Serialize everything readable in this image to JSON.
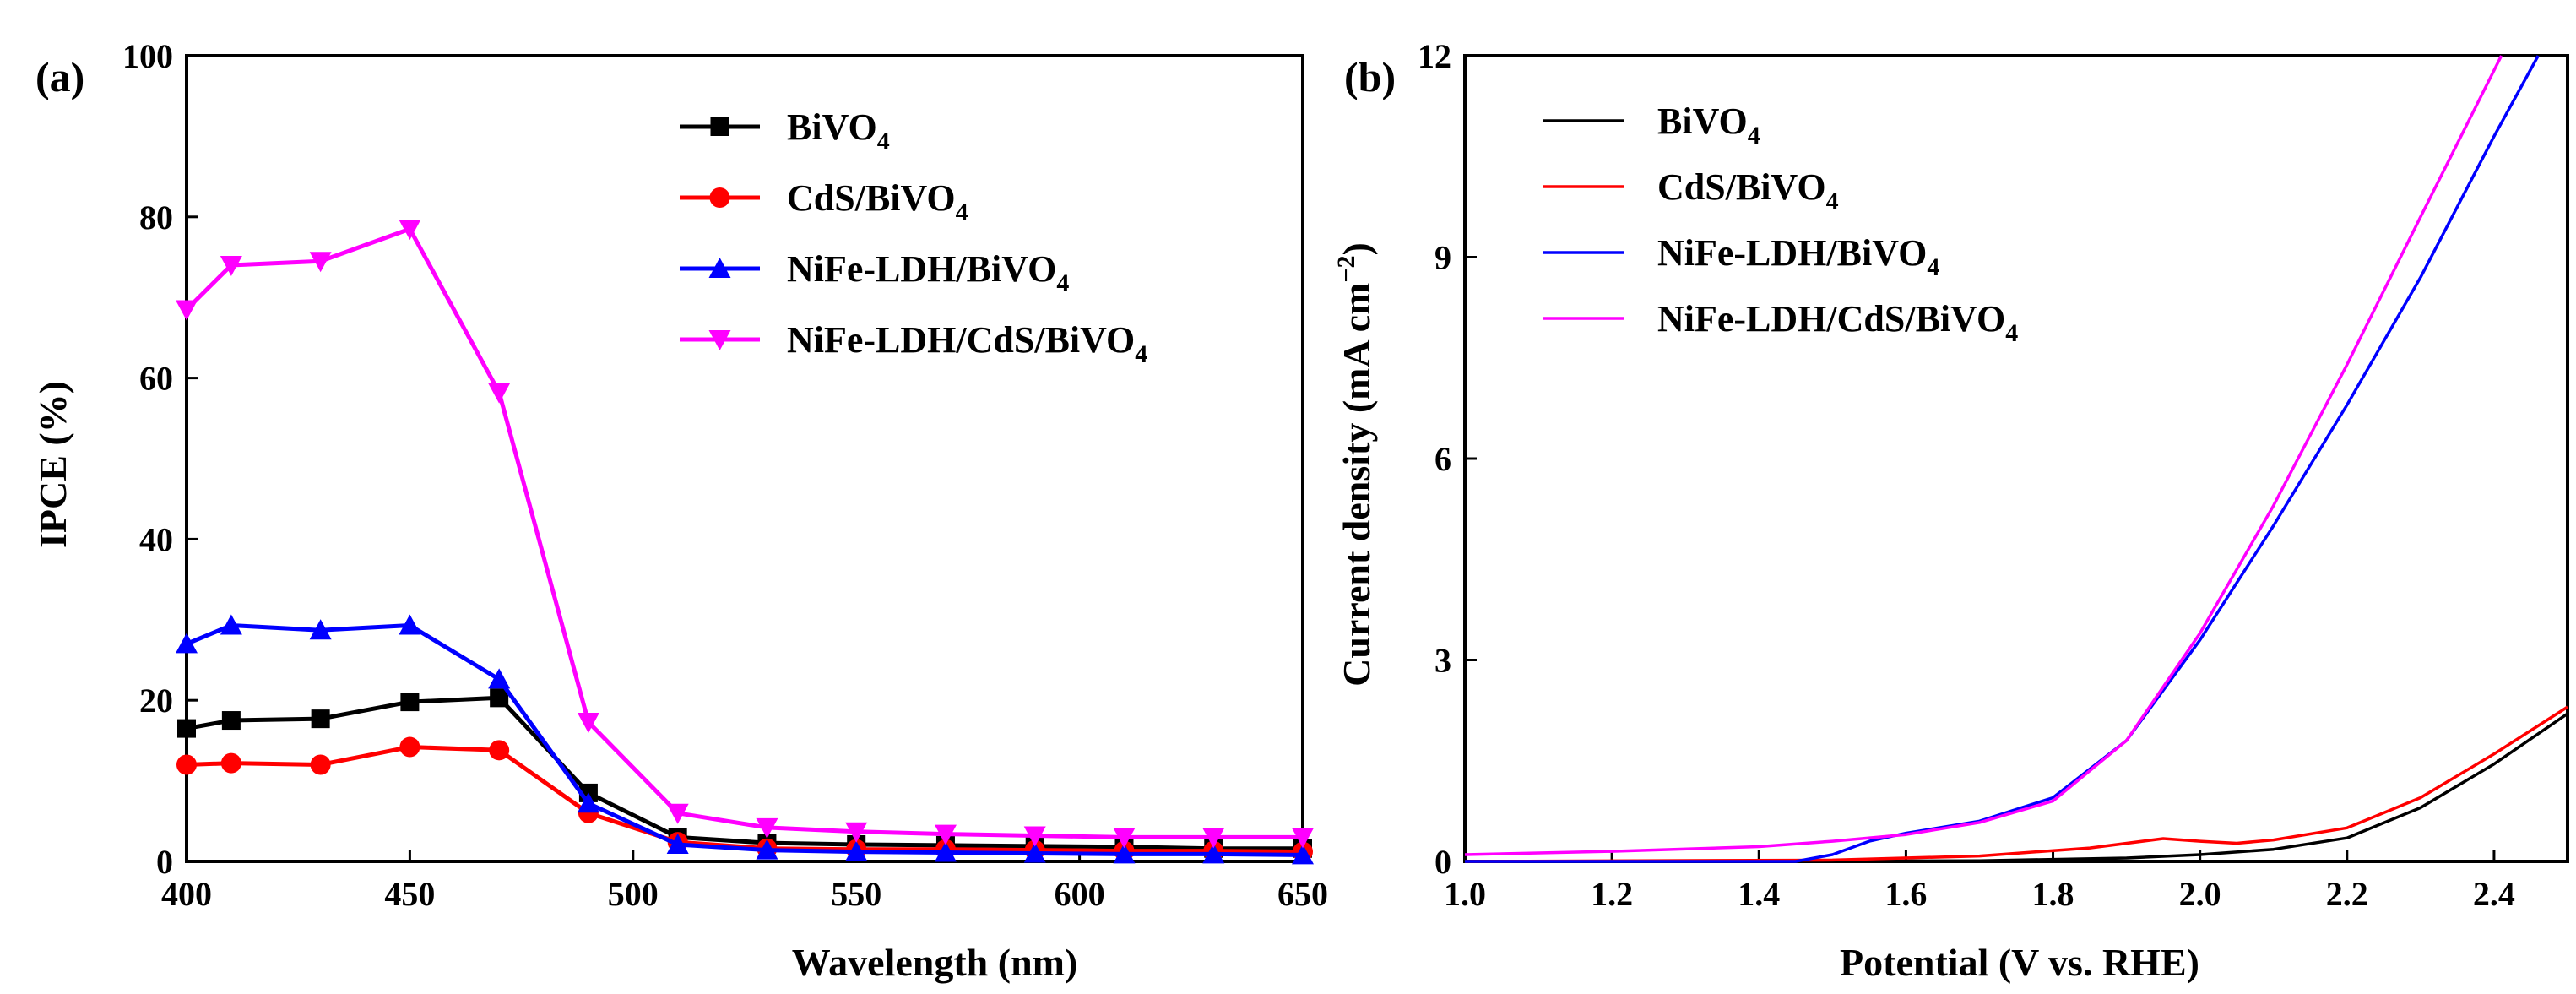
{
  "chart_data": [
    {
      "type": "line",
      "panel_label": "(a)",
      "xlabel": "Wavelength (nm)",
      "ylabel": "IPCE (%)",
      "xlim": [
        400,
        650
      ],
      "ylim": [
        0,
        100
      ],
      "xticks": [
        "400",
        "450",
        "500",
        "550",
        "600",
        "650"
      ],
      "yticks": [
        "0",
        "20",
        "40",
        "60",
        "80",
        "100"
      ],
      "x": [
        400,
        410,
        430,
        450,
        470,
        490,
        510,
        530,
        550,
        570,
        590,
        610,
        630,
        650
      ],
      "legend_position": "top-right",
      "series": [
        {
          "name": "BiVO",
          "sub": "4",
          "color": "#000000",
          "marker": "square",
          "values": [
            16.5,
            17.5,
            17.7,
            19.8,
            20.3,
            8.5,
            3.0,
            2.3,
            2.1,
            2.0,
            1.9,
            1.8,
            1.6,
            1.6
          ]
        },
        {
          "name": "CdS/BiVO",
          "sub": "4",
          "color": "#ff0000",
          "marker": "circle",
          "values": [
            12.0,
            12.2,
            12.0,
            14.2,
            13.8,
            6.0,
            2.4,
            1.6,
            1.5,
            1.5,
            1.4,
            1.3,
            1.3,
            1.2
          ]
        },
        {
          "name": "NiFe-LDH/BiVO",
          "sub": "4",
          "color": "#0000ff",
          "marker": "triangle-up",
          "values": [
            27.0,
            29.3,
            28.7,
            29.3,
            22.6,
            7.2,
            2.1,
            1.4,
            1.2,
            1.1,
            1.0,
            0.9,
            0.9,
            0.8
          ]
        },
        {
          "name": "NiFe-LDH/CdS/BiVO",
          "sub": "4",
          "color": "#ff00ff",
          "marker": "triangle-down",
          "values": [
            68.5,
            74.0,
            74.5,
            78.5,
            58.2,
            17.3,
            6.0,
            4.2,
            3.7,
            3.4,
            3.2,
            3.0,
            3.0,
            3.0
          ]
        }
      ]
    },
    {
      "type": "line",
      "panel_label": "(b)",
      "xlabel": "Potential (V vs. RHE)",
      "ylabel": "Current density (mA cm",
      "ylabel_sup": "−2",
      "ylabel_end": ")",
      "xlim": [
        1.0,
        2.5
      ],
      "ylim": [
        0,
        12
      ],
      "xticks": [
        "1.0",
        "1.2",
        "1.4",
        "1.6",
        "1.8",
        "2.0",
        "2.2",
        "2.4"
      ],
      "yticks": [
        "0",
        "3",
        "6",
        "9",
        "12"
      ],
      "legend_position": "top-left",
      "series": [
        {
          "name": "BiVO",
          "sub": "4",
          "color": "#000000",
          "x": [
            1.0,
            1.4,
            1.7,
            1.9,
            2.0,
            2.1,
            2.2,
            2.3,
            2.4,
            2.5
          ],
          "values": [
            0.0,
            0.0,
            0.01,
            0.05,
            0.1,
            0.18,
            0.35,
            0.8,
            1.45,
            2.2
          ]
        },
        {
          "name": "CdS/BiVO",
          "sub": "4",
          "color": "#ff0000",
          "x": [
            1.0,
            1.5,
            1.7,
            1.85,
            1.95,
            2.0,
            2.05,
            2.1,
            2.2,
            2.3,
            2.4,
            2.5
          ],
          "values": [
            0.0,
            0.02,
            0.08,
            0.2,
            0.34,
            0.3,
            0.27,
            0.32,
            0.5,
            0.95,
            1.6,
            2.3
          ]
        },
        {
          "name": "NiFe-LDH/BiVO",
          "sub": "4",
          "color": "#0000ff",
          "x": [
            1.0,
            1.45,
            1.5,
            1.55,
            1.6,
            1.7,
            1.8,
            1.9,
            2.0,
            2.1,
            2.2,
            2.3,
            2.4,
            2.46
          ],
          "values": [
            0.0,
            0.0,
            0.1,
            0.3,
            0.42,
            0.6,
            0.95,
            1.8,
            3.3,
            5.0,
            6.8,
            8.7,
            10.8,
            12.0
          ]
        },
        {
          "name": "NiFe-LDH/CdS/BiVO",
          "sub": "4",
          "color": "#ff00ff",
          "x": [
            1.0,
            1.2,
            1.4,
            1.5,
            1.6,
            1.7,
            1.8,
            1.9,
            2.0,
            2.1,
            2.2,
            2.3,
            2.41
          ],
          "values": [
            0.1,
            0.15,
            0.22,
            0.3,
            0.4,
            0.58,
            0.9,
            1.8,
            3.4,
            5.3,
            7.4,
            9.6,
            12.0
          ]
        }
      ]
    }
  ]
}
